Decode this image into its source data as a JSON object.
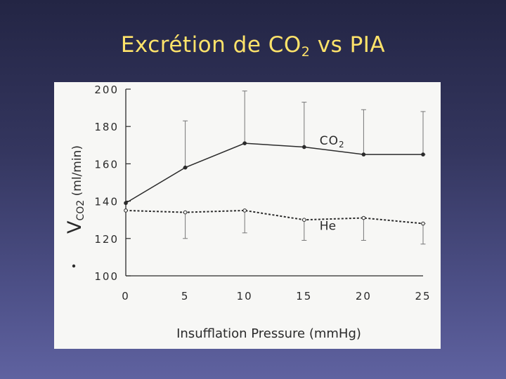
{
  "title": {
    "main": "Excrétion de CO",
    "subscript": "2",
    "rest": " vs PIA"
  },
  "chart_data": {
    "type": "line",
    "x": [
      0,
      5,
      10,
      15,
      20,
      25
    ],
    "xlabel": "Insufflation  Pressure  (mmHg)",
    "ylabel": {
      "symbol": "V",
      "subscript": "CO2",
      "unit": " (ml/min)"
    },
    "xlim": [
      0,
      25
    ],
    "ylim": [
      100,
      200
    ],
    "yticks": [
      100,
      120,
      140,
      160,
      180,
      200
    ],
    "xticks": [
      0,
      5,
      10,
      15,
      20,
      25
    ],
    "series": [
      {
        "name": "CO",
        "name_subscript": "2",
        "style": "solid",
        "values": [
          139,
          158,
          171,
          169,
          165,
          165
        ],
        "error_upper": [
          null,
          183,
          199,
          193,
          189,
          188
        ],
        "error_lower": [
          null,
          158,
          171,
          169,
          165,
          165
        ]
      },
      {
        "name": "He",
        "style": "dashed",
        "values": [
          135,
          134,
          135,
          130,
          131,
          128
        ],
        "error_upper": [
          null,
          134,
          135,
          130,
          131,
          128
        ],
        "error_lower": [
          null,
          120,
          123,
          119,
          119,
          117
        ]
      }
    ],
    "grid": false,
    "colors": {
      "line": "#2b2b2b",
      "panel": "#f7f7f5",
      "title": "#ffe36a"
    }
  }
}
